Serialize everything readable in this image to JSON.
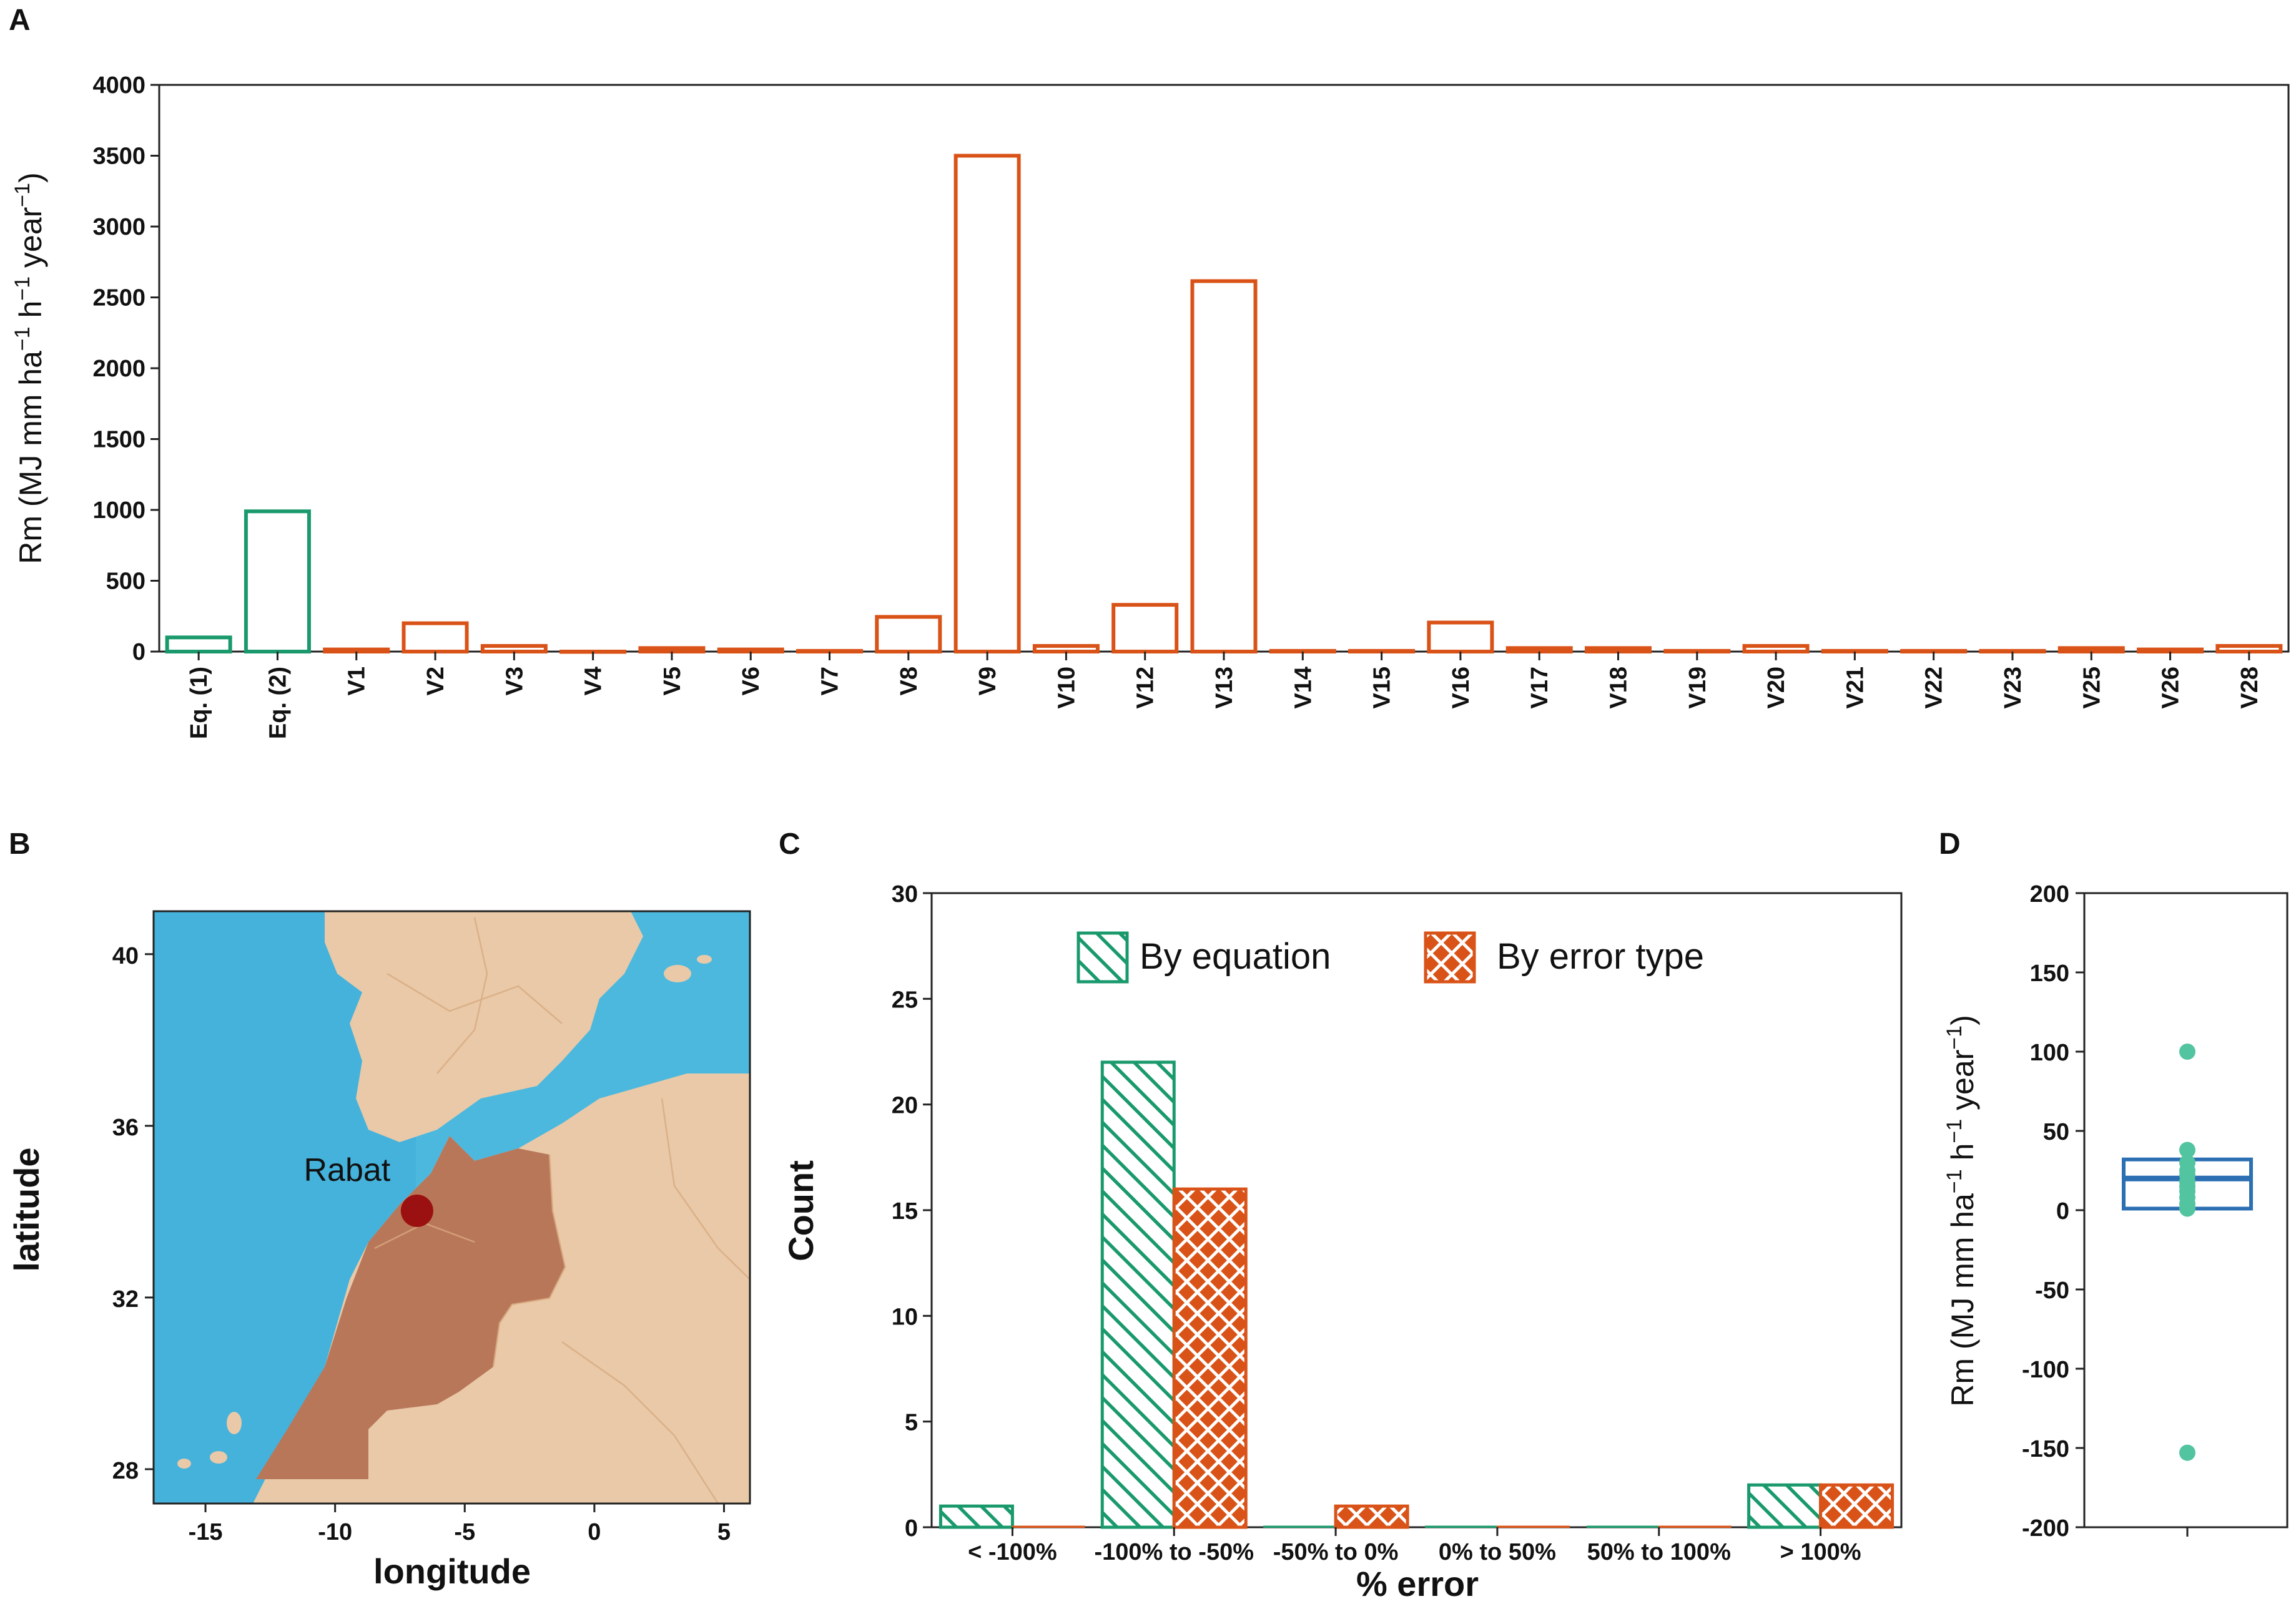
{
  "panels": {
    "A": {
      "letter": "A"
    },
    "B": {
      "letter": "B"
    },
    "C": {
      "letter": "C"
    },
    "D": {
      "letter": "D"
    }
  },
  "colors": {
    "green": "#1a9a6c",
    "orange": "#d95318",
    "blue": "#2c6fb3",
    "teal_point": "#52c4a0",
    "sea": "#4cb8de",
    "land": "#e9c9a8",
    "morocco": "#b9775a",
    "city": "#9b1010"
  },
  "chart_data": [
    {
      "panel": "A",
      "type": "bar",
      "ylabel_base": "Rm (MJ mm ha",
      "ylabel_sup": "−1",
      "ylabel_mid": " h",
      "ylabel_sup2": "−1",
      "ylabel_end": " year",
      "ylabel_sup3": "−1",
      "ylabel_close": ")",
      "ylim": [
        0,
        4000
      ],
      "yticks": [
        "0",
        "500",
        "1000",
        "1500",
        "2000",
        "2500",
        "3000",
        "3500",
        "4000"
      ],
      "categories": [
        "Eq. (1)",
        "Eq. (2)",
        "V1",
        "V2",
        "V3",
        "V4",
        "V5",
        "V6",
        "V7",
        "V8",
        "V9",
        "V10",
        "V12",
        "V13",
        "V14",
        "V15",
        "V16",
        "V17",
        "V18",
        "V19",
        "V20",
        "V21",
        "V22",
        "V23",
        "V25",
        "V26",
        "V28"
      ],
      "values": [
        100,
        990,
        15,
        200,
        40,
        0,
        25,
        15,
        5,
        245,
        3500,
        40,
        330,
        2615,
        5,
        5,
        205,
        25,
        25,
        5,
        40,
        5,
        5,
        5,
        25,
        15,
        40
      ],
      "groups": [
        "equation",
        "equation",
        "variant",
        "variant",
        "variant",
        "variant",
        "variant",
        "variant",
        "variant",
        "variant",
        "variant",
        "variant",
        "variant",
        "variant",
        "variant",
        "variant",
        "variant",
        "variant",
        "variant",
        "variant",
        "variant",
        "variant",
        "variant",
        "variant",
        "variant",
        "variant",
        "variant"
      ]
    },
    {
      "panel": "B",
      "type": "map",
      "xlabel": "longitude",
      "ylabel": "latitude",
      "xlim": [
        -17,
        6
      ],
      "ylim": [
        27.2,
        41.0
      ],
      "xticks": [
        "-15",
        "-10",
        "-5",
        "0",
        "5"
      ],
      "yticks": [
        "28",
        "32",
        "36",
        "40"
      ],
      "city": {
        "name": "Rabat",
        "lon": -6.84,
        "lat": 34.02
      }
    },
    {
      "panel": "C",
      "type": "bar",
      "xlabel": "% error",
      "ylabel": "Count",
      "ylim": [
        0,
        30
      ],
      "yticks": [
        "0",
        "5",
        "10",
        "15",
        "20",
        "25",
        "30"
      ],
      "categories": [
        "< -100%",
        "-100% to -50%",
        "-50% to 0%",
        "0% to 50%",
        "50% to 100%",
        "> 100%"
      ],
      "series": [
        {
          "name": "By equation",
          "values": [
            1,
            22,
            0,
            0,
            0,
            2
          ]
        },
        {
          "name": "By error type",
          "values": [
            0,
            16,
            1,
            0,
            0,
            2
          ]
        }
      ],
      "legend": "top-center"
    },
    {
      "panel": "D",
      "type": "box",
      "ylabel_base": "Rm (MJ mm ha",
      "ylabel_sup": "−1",
      "ylabel_mid": " h",
      "ylabel_sup2": "−1",
      "ylabel_end": " year",
      "ylabel_sup3": "−1",
      "ylabel_close": ")",
      "ylim": [
        -200,
        200
      ],
      "yticks": [
        "-200",
        "-150",
        "-100",
        "-50",
        "0",
        "50",
        "100",
        "150",
        "200"
      ],
      "box": {
        "q1": 1,
        "median": 20,
        "q3": 32
      },
      "points": [
        100,
        38,
        30,
        25,
        22,
        18,
        15,
        12,
        8,
        4,
        1,
        -153
      ]
    }
  ]
}
